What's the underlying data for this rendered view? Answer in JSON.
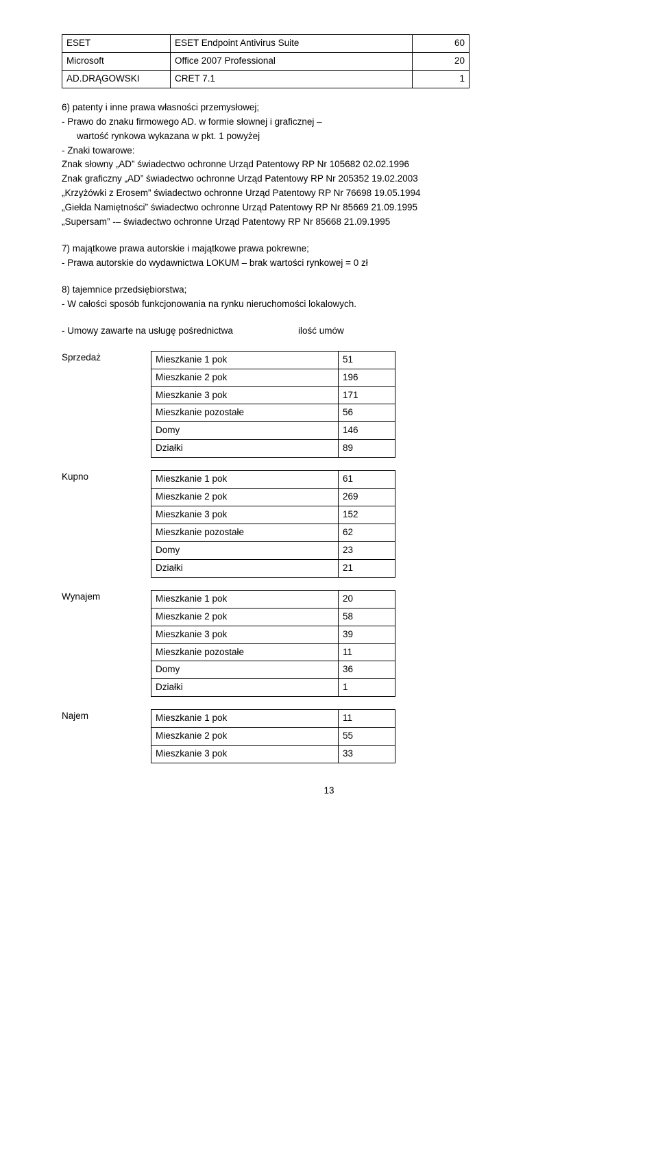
{
  "topTable": {
    "rows": [
      {
        "c1": "ESET",
        "c2": "ESET Endpoint Antivirus Suite",
        "c3": "60"
      },
      {
        "c1": "Microsoft",
        "c2": "Office 2007 Professional",
        "c3": "20"
      },
      {
        "c1": "AD.DRĄGOWSKI",
        "c2": "CRET 7.1",
        "c3": "1"
      }
    ]
  },
  "section6": {
    "heading": "6) patenty i inne prawa własności przemysłowej;",
    "line1": "- Prawo do znaku firmowego AD. w formie słownej i graficznej –",
    "line2": "wartość rynkowa wykazana w pkt. 1 powyżej",
    "line3": "- Znaki towarowe:",
    "t1": "Znak słowny „AD” świadectwo ochronne Urząd Patentowy RP Nr 105682 02.02.1996",
    "t2": "Znak graficzny „AD” świadectwo ochronne Urząd Patentowy RP Nr 205352 19.02.2003",
    "t3": "„Krzyżówki z Erosem” świadectwo ochronne Urząd Patentowy RP Nr 76698 19.05.1994",
    "t4": "„Giełda Namiętności” świadectwo ochronne Urząd Patentowy RP Nr 85669 21.09.1995",
    "t5": "„Supersam” -– świadectwo ochronne Urząd Patentowy RP Nr 85668 21.09.1995"
  },
  "section7": {
    "heading": "7) majątkowe prawa autorskie i majątkowe prawa pokrewne;",
    "line1": "- Prawa autorskie do wydawnictwa LOKUM – brak wartości rynkowej = 0 zł"
  },
  "section8": {
    "heading": "8) tajemnice przedsiębiorstwa;",
    "line1": "- W całości sposób funkcjonowania na rynku nieruchomości lokalowych."
  },
  "contractsHeader": {
    "label": "- Umowy zawarte na usługę pośrednictwa",
    "col2": "ilość umów"
  },
  "groups": [
    {
      "label": "Sprzedaż",
      "rows": [
        {
          "k": "Mieszkanie 1 pok",
          "v": "51"
        },
        {
          "k": "Mieszkanie 2 pok",
          "v": "196"
        },
        {
          "k": "Mieszkanie 3 pok",
          "v": "171"
        },
        {
          "k": "Mieszkanie pozostałe",
          "v": "56"
        },
        {
          "k": "Domy",
          "v": "146"
        },
        {
          "k": "Działki",
          "v": "89"
        }
      ]
    },
    {
      "label": "Kupno",
      "rows": [
        {
          "k": "Mieszkanie 1 pok",
          "v": "61"
        },
        {
          "k": "Mieszkanie 2 pok",
          "v": "269"
        },
        {
          "k": "Mieszkanie 3 pok",
          "v": "152"
        },
        {
          "k": "Mieszkanie pozostałe",
          "v": "62"
        },
        {
          "k": "Domy",
          "v": "23"
        },
        {
          "k": "Działki",
          "v": "21"
        }
      ]
    },
    {
      "label": "Wynajem",
      "rows": [
        {
          "k": "Mieszkanie 1 pok",
          "v": "20"
        },
        {
          "k": "Mieszkanie 2 pok",
          "v": "58"
        },
        {
          "k": "Mieszkanie 3 pok",
          "v": "39"
        },
        {
          "k": "Mieszkanie pozostałe",
          "v": "11"
        },
        {
          "k": "Domy",
          "v": "36"
        },
        {
          "k": "Działki",
          "v": "1"
        }
      ]
    },
    {
      "label": "Najem",
      "rows": [
        {
          "k": "Mieszkanie 1 pok",
          "v": "11"
        },
        {
          "k": "Mieszkanie 2 pok",
          "v": "55"
        },
        {
          "k": "Mieszkanie 3 pok",
          "v": "33"
        }
      ]
    }
  ],
  "pageNumber": "13"
}
